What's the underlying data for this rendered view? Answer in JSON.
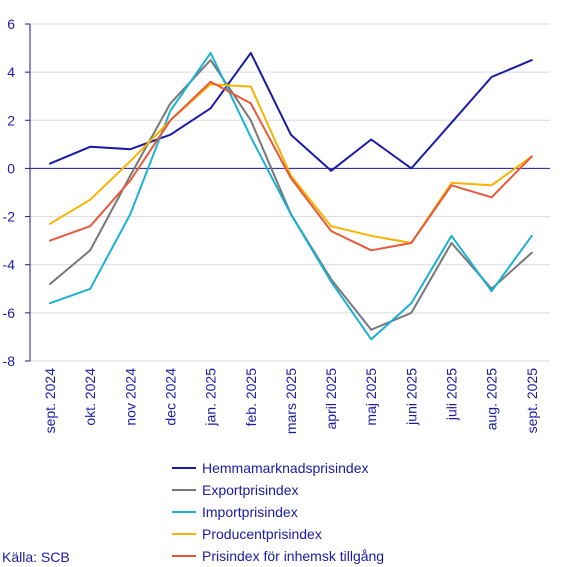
{
  "chart_data": {
    "type": "line",
    "categories": [
      "sept. 2024",
      "okt. 2024",
      "nov 2024",
      "dec 2024",
      "jan. 2025",
      "feb. 2025",
      "mars 2025",
      "april 2025",
      "maj 2025",
      "juni 2025",
      "juli 2025",
      "aug. 2025",
      "sept. 2025"
    ],
    "ylim": [
      -8,
      6
    ],
    "yticks": [
      -8,
      -6,
      -4,
      -2,
      0,
      2,
      4,
      6
    ],
    "grid": "horizontal",
    "legend_position": "bottom",
    "series": [
      {
        "name": "Hemmamarknadsprisindex",
        "color": "#1a1aa6",
        "values": [
          0.2,
          0.9,
          0.8,
          1.4,
          2.5,
          4.8,
          1.4,
          -0.1,
          1.2,
          0.0,
          1.9,
          3.8,
          4.5
        ]
      },
      {
        "name": "Exportprisindex",
        "color": "#787878",
        "values": [
          -4.8,
          -3.4,
          -0.3,
          2.7,
          4.5,
          2.0,
          -1.9,
          -4.6,
          -6.7,
          -6.0,
          -3.1,
          -5.0,
          -3.5
        ]
      },
      {
        "name": "Importprisindex",
        "color": "#1ab2d2",
        "values": [
          -5.6,
          -5.0,
          -1.9,
          2.4,
          4.8,
          1.3,
          -1.9,
          -4.7,
          -7.1,
          -5.6,
          -2.8,
          -5.1,
          -2.8
        ]
      },
      {
        "name": "Producentprisindex",
        "color": "#f5b400",
        "values": [
          -2.3,
          -1.3,
          0.3,
          2.0,
          3.5,
          3.4,
          -0.3,
          -2.4,
          -2.8,
          -3.1,
          -0.6,
          -0.7,
          0.5
        ]
      },
      {
        "name": "Prisindex för inhemsk tillgång",
        "color": "#e8583a",
        "values": [
          -3.0,
          -2.4,
          -0.5,
          2.0,
          3.6,
          2.7,
          -0.4,
          -2.6,
          -3.4,
          -3.1,
          -0.7,
          -1.2,
          0.5
        ]
      }
    ]
  },
  "source": "Källa: SCB"
}
